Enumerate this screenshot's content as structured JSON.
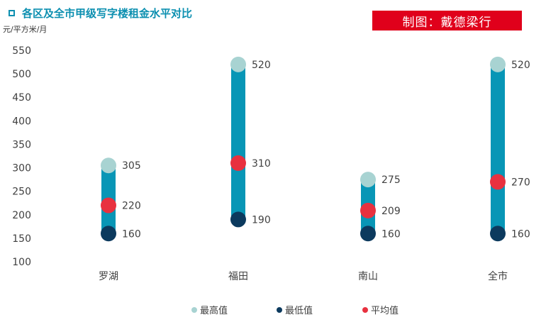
{
  "title": "各区及全市甲级写字楼租金水平对比",
  "unit_label": "元/平方米/月",
  "credit": "制图：戴德梁行",
  "colors": {
    "bar": "#0896b6",
    "max": "#a8d3d2",
    "min": "#0c3a5e",
    "avg": "#e8313f",
    "title": "#0b8fb0",
    "credit_bg": "#e0001b"
  },
  "legend": {
    "max_label": "最高值",
    "min_label": "最低值",
    "avg_label": "平均值"
  },
  "chart_data": {
    "type": "range-dot",
    "title": "各区及全市甲级写字楼租金水平对比",
    "ylabel": "元/平方米/月",
    "ylim": [
      100,
      550
    ],
    "yticks": [
      100,
      150,
      200,
      250,
      300,
      350,
      400,
      450,
      500,
      550
    ],
    "grid": false,
    "legend_position": "bottom",
    "categories": [
      "罗湖",
      "福田",
      "南山",
      "全市"
    ],
    "series": [
      {
        "name": "最高值",
        "values": [
          305,
          520,
          275,
          520
        ]
      },
      {
        "name": "最低值",
        "values": [
          160,
          190,
          160,
          160
        ]
      },
      {
        "name": "平均值",
        "values": [
          220,
          310,
          209,
          270
        ]
      }
    ]
  }
}
